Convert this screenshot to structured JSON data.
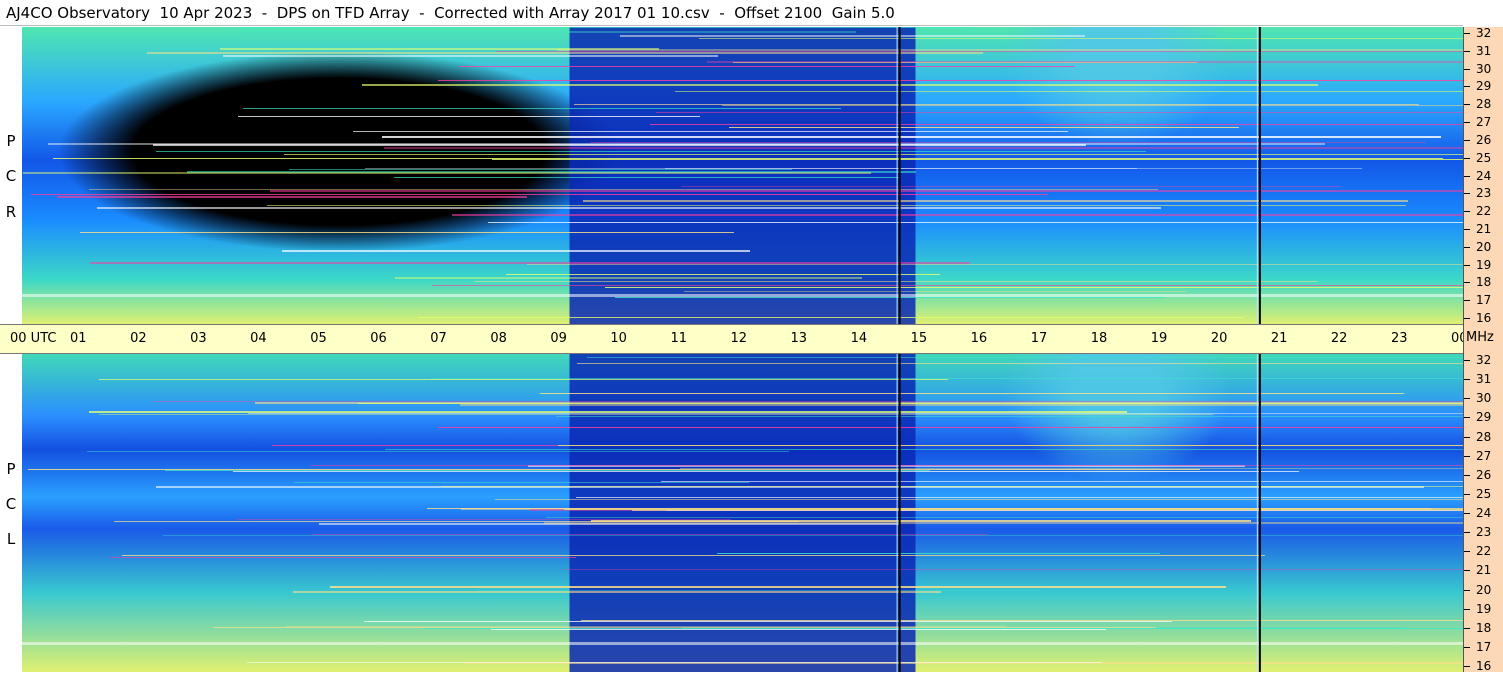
{
  "header": {
    "title": "AJ4CO Observatory  10 Apr 2023  -  DPS on TFD Array  -  Corrected with Array 2017 01 10.csv  -  Offset 2100  Gain 5.0"
  },
  "panels": [
    {
      "id": "rcp",
      "letters": [
        "P",
        "C",
        "R"
      ]
    },
    {
      "id": "lcp",
      "letters": [
        "P",
        "C",
        "L"
      ]
    }
  ],
  "time_axis": {
    "labels": [
      "00 UTC",
      "01",
      "02",
      "03",
      "04",
      "05",
      "06",
      "07",
      "08",
      "09",
      "10",
      "11",
      "12",
      "13",
      "14",
      "15",
      "16",
      "17",
      "18",
      "19",
      "20",
      "21",
      "22",
      "23",
      "00"
    ]
  },
  "freq_axis": {
    "labels": [
      "32",
      "31",
      "30",
      "29",
      "28",
      "27",
      "26",
      "25",
      "24",
      "23",
      "22",
      "21",
      "20",
      "19",
      "18",
      "17",
      "16"
    ],
    "unit": "MHz"
  },
  "chart_data": {
    "type": "heatmap",
    "x_range_utc_hours": [
      0,
      24
    ],
    "y_range_mhz": [
      16,
      32
    ],
    "x_ticks": [
      "00 UTC",
      "01",
      "02",
      "03",
      "04",
      "05",
      "06",
      "07",
      "08",
      "09",
      "10",
      "11",
      "12",
      "13",
      "14",
      "15",
      "16",
      "17",
      "18",
      "19",
      "20",
      "21",
      "22",
      "23",
      "00"
    ],
    "y_ticks": [
      "32",
      "31",
      "30",
      "29",
      "28",
      "27",
      "26",
      "25",
      "24",
      "23",
      "22",
      "21",
      "20",
      "19",
      "18",
      "17",
      "16"
    ],
    "y_unit": "MHz",
    "panels": [
      "RCP",
      "LCP"
    ],
    "colors": {
      "low": "#000000",
      "mid_low": "#0f3fd8",
      "mid": "#1e90ff",
      "mid_high": "#3ce6c8",
      "high": "#e6ff6e",
      "peak": "#ff3ca0"
    },
    "vertical_markers_utc": [
      14.6,
      20.6
    ]
  }
}
